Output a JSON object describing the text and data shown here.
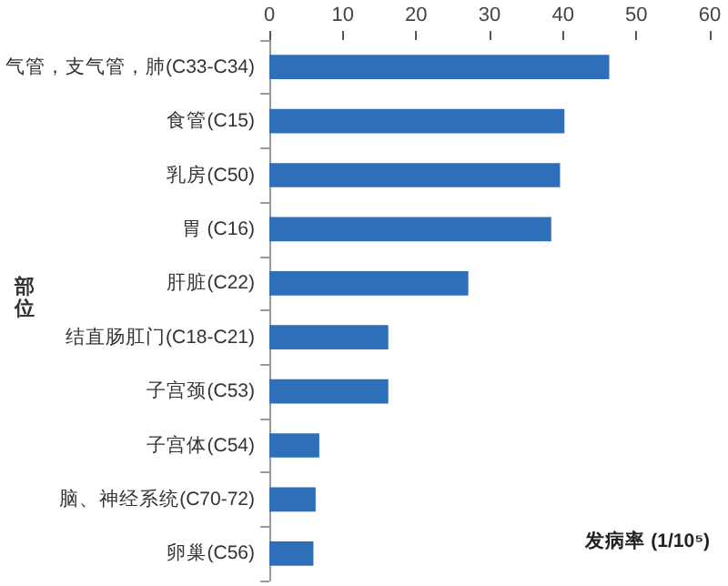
{
  "chart_data": {
    "type": "bar",
    "orientation": "horizontal",
    "xlabel": "发病率 (1/10⁵)",
    "ylabel": "部位",
    "categories": [
      "气管，支气管，肺(C33-C34)",
      "食管(C15)",
      "乳房(C50)",
      "胃 (C16)",
      "肝脏(C22)",
      "结直肠肛门(C18-C21)",
      "子宫颈(C53)",
      "子宫体(C54)",
      "脑、神经系统(C70-72)",
      "卵巢(C56)"
    ],
    "values": [
      46.3,
      40.2,
      39.6,
      38.4,
      27.1,
      16.2,
      16.2,
      6.8,
      6.3,
      6.0
    ],
    "color": "#2e6fba",
    "xlim": [
      0,
      60
    ],
    "xticks": [
      0,
      10,
      20,
      30,
      40,
      50,
      60
    ],
    "grid": false
  }
}
